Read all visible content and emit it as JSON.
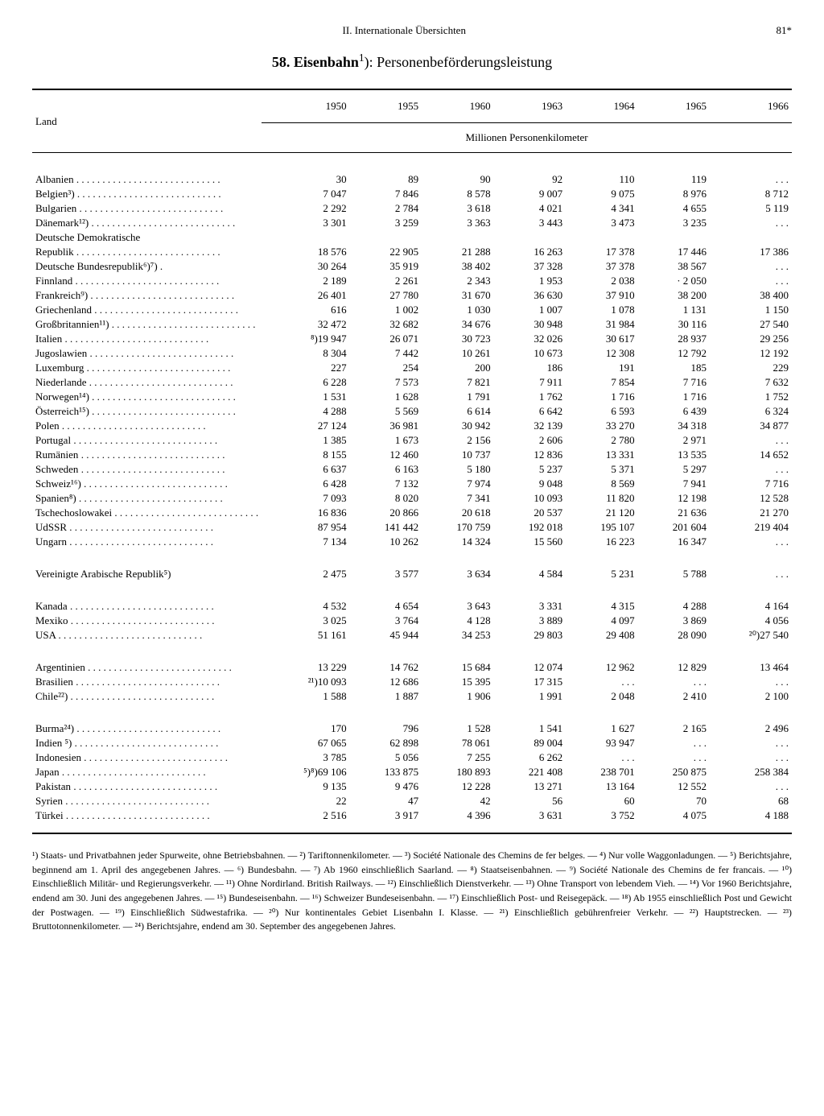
{
  "header": {
    "section": "II. Internationale Übersichten",
    "page": "81*"
  },
  "title": {
    "num": "58.",
    "main": "Eisenbahn",
    "sup": "1",
    "rest": "): Personenbeförderungsleistung"
  },
  "columns": {
    "land": "Land",
    "years": [
      "1950",
      "1955",
      "1960",
      "1963",
      "1964",
      "1965",
      "1966"
    ],
    "unit": "Millionen Personenkilometer"
  },
  "groups": [
    {
      "rows": [
        {
          "land": "Albanien",
          "v": [
            "30",
            "89",
            "90",
            "92",
            "110",
            "119",
            ". . ."
          ]
        },
        {
          "land": "Belgien³)",
          "v": [
            "7 047",
            "7 846",
            "8 578",
            "9 007",
            "9 075",
            "8 976",
            "8 712"
          ]
        },
        {
          "land": "Bulgarien",
          "v": [
            "2 292",
            "2 784",
            "3 618",
            "4 021",
            "4 341",
            "4 655",
            "5 119"
          ]
        },
        {
          "land": "Dänemark¹²)",
          "v": [
            "3 301",
            "3 259",
            "3 363",
            "3 443",
            "3 473",
            "3 235",
            ". . ."
          ]
        },
        {
          "land": "Deutsche Demokratische",
          "v": [
            "",
            "",
            "",
            "",
            "",
            "",
            ""
          ],
          "noleader": true
        },
        {
          "land": "   Republik",
          "v": [
            "18 576",
            "22 905",
            "21 288",
            "16 263",
            "17 378",
            "17 446",
            "17 386"
          ]
        },
        {
          "land": "Deutsche Bundesrepublik⁶)⁷) .",
          "v": [
            "30 264",
            "35 919",
            "38 402",
            "37 328",
            "37 378",
            "38 567",
            ". . ."
          ],
          "noleader": true
        },
        {
          "land": "Finnland",
          "v": [
            "2 189",
            "2 261",
            "2 343",
            "1 953",
            "2 038",
            "· 2 050",
            ". . ."
          ]
        },
        {
          "land": "Frankreich⁹)",
          "v": [
            "26 401",
            "27 780",
            "31 670",
            "36 630",
            "37 910",
            "38 200",
            "38 400"
          ]
        },
        {
          "land": "Griechenland",
          "v": [
            "616",
            "1 002",
            "1 030",
            "1 007",
            "1 078",
            "1 131",
            "1 150"
          ]
        },
        {
          "land": "Großbritannien¹¹)",
          "v": [
            "32 472",
            "32 682",
            "34 676",
            "30 948",
            "31 984",
            "30 116",
            "27 540"
          ]
        },
        {
          "land": "Italien",
          "v": [
            "⁸)19 947",
            "26 071",
            "30 723",
            "32 026",
            "30 617",
            "28 937",
            "29 256"
          ]
        },
        {
          "land": "Jugoslawien",
          "v": [
            "8 304",
            "7 442",
            "10 261",
            "10 673",
            "12 308",
            "12 792",
            "12 192"
          ]
        },
        {
          "land": "Luxemburg",
          "v": [
            "227",
            "254",
            "200",
            "186",
            "191",
            "185",
            "229"
          ]
        },
        {
          "land": "Niederlande",
          "v": [
            "6 228",
            "7 573",
            "7 821",
            "7 911",
            "7 854",
            "7 716",
            "7 632"
          ]
        },
        {
          "land": "Norwegen¹⁴)",
          "v": [
            "1 531",
            "1 628",
            "1 791",
            "1 762",
            "1 716",
            "1 716",
            "1 752"
          ]
        },
        {
          "land": "Österreich¹⁵)",
          "v": [
            "4 288",
            "5 569",
            "6 614",
            "6 642",
            "6 593",
            "6 439",
            "6 324"
          ]
        },
        {
          "land": "Polen",
          "v": [
            "27 124",
            "36 981",
            "30 942",
            "32 139",
            "33 270",
            "34 318",
            "34 877"
          ]
        },
        {
          "land": "Portugal",
          "v": [
            "1 385",
            "1 673",
            "2 156",
            "2 606",
            "2 780",
            "2 971",
            ". . ."
          ]
        },
        {
          "land": "Rumänien",
          "v": [
            "8 155",
            "12 460",
            "10 737",
            "12 836",
            "13 331",
            "13 535",
            "14 652"
          ]
        },
        {
          "land": "Schweden",
          "v": [
            "6 637",
            "6 163",
            "5 180",
            "5 237",
            "5 371",
            "5 297",
            ". . ."
          ]
        },
        {
          "land": "Schweiz¹⁶)",
          "v": [
            "6 428",
            "7 132",
            "7 974",
            "9 048",
            "8 569",
            "7 941",
            "7 716"
          ]
        },
        {
          "land": "Spanien⁸)",
          "v": [
            "7 093",
            "8 020",
            "7 341",
            "10 093",
            "11 820",
            "12 198",
            "12 528"
          ]
        },
        {
          "land": "Tschechoslowakei",
          "v": [
            "16 836",
            "20 866",
            "20 618",
            "20 537",
            "21 120",
            "21 636",
            "21 270"
          ]
        },
        {
          "land": "UdSSR",
          "v": [
            "87 954",
            "141 442",
            "170 759",
            "192 018",
            "195 107",
            "201 604",
            "219 404"
          ]
        },
        {
          "land": "Ungarn",
          "v": [
            "7 134",
            "10 262",
            "14 324",
            "15 560",
            "16 223",
            "16 347",
            ". . ."
          ]
        }
      ]
    },
    {
      "rows": [
        {
          "land": "Vereinigte Arabische Republik⁵)",
          "v": [
            "2 475",
            "3 577",
            "3 634",
            "4 584",
            "5 231",
            "5 788",
            ". . ."
          ],
          "noleader": true
        }
      ]
    },
    {
      "rows": [
        {
          "land": "Kanada",
          "v": [
            "4 532",
            "4 654",
            "3 643",
            "3 331",
            "4 315",
            "4 288",
            "4 164"
          ]
        },
        {
          "land": "Mexiko",
          "v": [
            "3 025",
            "3 764",
            "4 128",
            "3 889",
            "4 097",
            "3 869",
            "4 056"
          ]
        },
        {
          "land": "USA",
          "v": [
            "51 161",
            "45 944",
            "34 253",
            "29 803",
            "29 408",
            "28 090",
            "²⁰)27 540"
          ]
        }
      ]
    },
    {
      "rows": [
        {
          "land": "Argentinien",
          "v": [
            "13 229",
            "14 762",
            "15 684",
            "12 074",
            "12 962",
            "12 829",
            "13 464"
          ]
        },
        {
          "land": "Brasilien",
          "v": [
            "²¹)10 093",
            "12 686",
            "15 395",
            "17 315",
            ". . .",
            ". . .",
            ". . ."
          ]
        },
        {
          "land": "Chile²²)",
          "v": [
            "1 588",
            "1 887",
            "1 906",
            "1 991",
            "2 048",
            "2 410",
            "2 100"
          ]
        }
      ]
    },
    {
      "rows": [
        {
          "land": "Burma²⁴)",
          "v": [
            "170",
            "796",
            "1 528",
            "1 541",
            "1 627",
            "2 165",
            "2 496"
          ]
        },
        {
          "land": "Indien ⁵)",
          "v": [
            "67 065",
            "62 898",
            "78 061",
            "89 004",
            "93 947",
            ". . .",
            ". . ."
          ]
        },
        {
          "land": "Indonesien",
          "v": [
            "3 785",
            "5 056",
            "7 255",
            "6 262",
            ". . .",
            ". . .",
            ". . ."
          ]
        },
        {
          "land": "Japan",
          "v": [
            "⁵)⁸)69 106",
            "133 875",
            "180 893",
            "221 408",
            "238 701",
            "250 875",
            "258 384"
          ]
        },
        {
          "land": "Pakistan",
          "v": [
            "9 135",
            "9 476",
            "12 228",
            "13 271",
            "13 164",
            "12 552",
            ". . ."
          ]
        },
        {
          "land": "Syrien",
          "v": [
            "22",
            "47",
            "42",
            "56",
            "60",
            "70",
            "68"
          ]
        },
        {
          "land": "Türkei",
          "v": [
            "2 516",
            "3 917",
            "4 396",
            "3 631",
            "3 752",
            "4 075",
            "4 188"
          ]
        }
      ]
    }
  ],
  "footnotes": "¹) Staats- und Privatbahnen jeder Spurweite, ohne Betriebsbahnen. — ²) Tariftonnenkilometer. — ³) Société Nationale des Chemins de fer belges. — ⁴) Nur volle Waggonladungen. — ⁵) Berichtsjahre, beginnend am 1. April des angegebenen Jahres. — ⁶) Bundesbahn. — ⁷) Ab 1960 einschließlich Saarland. — ⁸) Staatseisenbahnen. — ⁹) Société Nationale des Chemins de fer francais. — ¹⁰) Einschließlich Militär- und Regierungsverkehr. — ¹¹) Ohne Nordirland. British Railways. — ¹²) Einschließlich Dienstverkehr. — ¹³) Ohne Transport von lebendem Vieh. — ¹⁴) Vor 1960 Berichtsjahre, endend am 30. Juni des angegebenen Jahres. — ¹⁵) Bundeseisenbahn. — ¹⁶) Schweizer Bundeseisenbahn. — ¹⁷) Einschließlich Post- und Reisegepäck. — ¹⁸) Ab 1955 einschließlich Post und Gewicht der Postwagen. — ¹⁹) Einschließlich Südwestafrika. — ²⁰) Nur kontinentales Gebiet Lisenbahn I. Klasse. — ²¹) Einschließlich gebührenfreier Verkehr. — ²²) Hauptstrecken. — ²³) Bruttotonnenkilometer. — ²⁴) Berichtsjahre, endend am 30. September des angegebenen Jahres."
}
